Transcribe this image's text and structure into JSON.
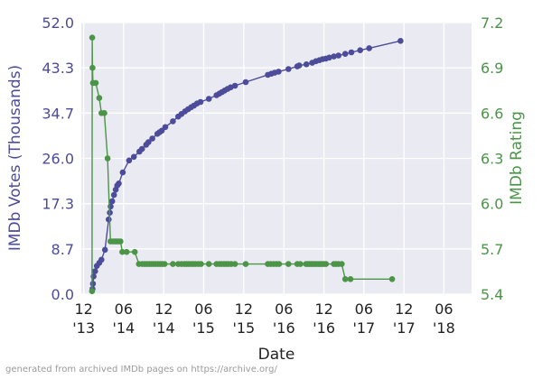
{
  "chart_data": {
    "type": "line",
    "xlabel": "Date",
    "ylabel_left": "IMDb Votes (Thousands)",
    "ylabel_right": "IMDb Rating",
    "x_ticks": [
      {
        "date": "2013-12-01",
        "line1": "12",
        "line2": "'13"
      },
      {
        "date": "2014-06-01",
        "line1": "06",
        "line2": "'14"
      },
      {
        "date": "2014-12-01",
        "line1": "12",
        "line2": "'14"
      },
      {
        "date": "2015-06-01",
        "line1": "06",
        "line2": "'15"
      },
      {
        "date": "2015-12-01",
        "line1": "12",
        "line2": "'15"
      },
      {
        "date": "2016-06-01",
        "line1": "06",
        "line2": "'16"
      },
      {
        "date": "2016-12-01",
        "line1": "12",
        "line2": "'16"
      },
      {
        "date": "2017-06-01",
        "line1": "06",
        "line2": "'17"
      },
      {
        "date": "2017-12-01",
        "line1": "12",
        "line2": "'17"
      },
      {
        "date": "2018-06-01",
        "line1": "06",
        "line2": "'18"
      }
    ],
    "xlim": [
      "2013-11-20",
      "2018-10-05"
    ],
    "y_left": {
      "min": 0,
      "max": 52,
      "ticks": [
        "0.0",
        "8.7",
        "17.3",
        "26.0",
        "34.7",
        "43.3",
        "52.0"
      ]
    },
    "y_right": {
      "min": 5.4,
      "max": 7.2,
      "ticks": [
        "5.4",
        "5.7",
        "6.0",
        "6.3",
        "6.6",
        "6.9",
        "7.2"
      ]
    },
    "grid": true,
    "series": [
      {
        "axis": "left",
        "color": "#4c4c9a",
        "points": [
          [
            "2014-01-10",
            1.0
          ],
          [
            "2014-01-12",
            2.0
          ],
          [
            "2014-01-15",
            3.4
          ],
          [
            "2014-01-22",
            4.4
          ],
          [
            "2014-01-30",
            5.4
          ],
          [
            "2014-02-10",
            6.0
          ],
          [
            "2014-02-20",
            6.6
          ],
          [
            "2014-03-08",
            8.5
          ],
          [
            "2014-03-25",
            14.3
          ],
          [
            "2014-03-30",
            15.6
          ],
          [
            "2014-04-03",
            16.8
          ],
          [
            "2014-04-10",
            17.8
          ],
          [
            "2014-04-18",
            19.0
          ],
          [
            "2014-04-26",
            20.0
          ],
          [
            "2014-05-03",
            20.8
          ],
          [
            "2014-05-10",
            21.2
          ],
          [
            "2014-05-28",
            23.3
          ],
          [
            "2014-06-26",
            25.6
          ],
          [
            "2014-07-18",
            26.3
          ],
          [
            "2014-08-12",
            27.3
          ],
          [
            "2014-08-24",
            27.8
          ],
          [
            "2014-09-12",
            28.6
          ],
          [
            "2014-09-22",
            29.1
          ],
          [
            "2014-10-10",
            29.8
          ],
          [
            "2014-11-02",
            30.7
          ],
          [
            "2014-11-12",
            31.0
          ],
          [
            "2014-11-22",
            31.3
          ],
          [
            "2014-12-08",
            32.0
          ],
          [
            "2015-01-12",
            33.1
          ],
          [
            "2015-02-05",
            34.0
          ],
          [
            "2015-02-20",
            34.5
          ],
          [
            "2015-03-08",
            35.0
          ],
          [
            "2015-03-22",
            35.4
          ],
          [
            "2015-04-05",
            35.8
          ],
          [
            "2015-04-18",
            36.1
          ],
          [
            "2015-05-02",
            36.5
          ],
          [
            "2015-05-18",
            36.8
          ],
          [
            "2015-06-25",
            37.4
          ],
          [
            "2015-07-30",
            38.1
          ],
          [
            "2015-08-12",
            38.4
          ],
          [
            "2015-08-24",
            38.7
          ],
          [
            "2015-09-05",
            39.0
          ],
          [
            "2015-09-18",
            39.3
          ],
          [
            "2015-10-02",
            39.6
          ],
          [
            "2015-10-22",
            39.9
          ],
          [
            "2015-12-10",
            40.6
          ],
          [
            "2016-03-20",
            42.0
          ],
          [
            "2016-04-05",
            42.2
          ],
          [
            "2016-04-20",
            42.4
          ],
          [
            "2016-05-08",
            42.6
          ],
          [
            "2016-06-22",
            43.1
          ],
          [
            "2016-08-01",
            43.6
          ],
          [
            "2016-08-10",
            43.8
          ],
          [
            "2016-09-12",
            44.0
          ],
          [
            "2016-10-08",
            44.3
          ],
          [
            "2016-10-25",
            44.6
          ],
          [
            "2016-11-10",
            44.8
          ],
          [
            "2016-11-25",
            45.0
          ],
          [
            "2016-12-10",
            45.1
          ],
          [
            "2016-12-25",
            45.3
          ],
          [
            "2017-01-15",
            45.5
          ],
          [
            "2017-02-05",
            45.7
          ],
          [
            "2017-03-08",
            46.0
          ],
          [
            "2017-04-05",
            46.3
          ],
          [
            "2017-05-15",
            46.7
          ],
          [
            "2017-06-25",
            47.1
          ],
          [
            "2017-11-15",
            48.5
          ]
        ]
      },
      {
        "axis": "right",
        "color": "#4b9448",
        "points": [
          [
            "2014-01-08",
            5.42
          ],
          [
            "2014-01-09",
            7.1
          ],
          [
            "2014-01-10",
            6.9
          ],
          [
            "2014-01-12",
            6.8
          ],
          [
            "2014-01-25",
            6.8
          ],
          [
            "2014-02-10",
            6.7
          ],
          [
            "2014-02-20",
            6.6
          ],
          [
            "2014-03-05",
            6.6
          ],
          [
            "2014-03-20",
            6.3
          ],
          [
            "2014-04-02",
            5.75
          ],
          [
            "2014-04-10",
            5.75
          ],
          [
            "2014-04-18",
            5.75
          ],
          [
            "2014-04-26",
            5.75
          ],
          [
            "2014-05-03",
            5.75
          ],
          [
            "2014-05-10",
            5.75
          ],
          [
            "2014-05-18",
            5.75
          ],
          [
            "2014-05-26",
            5.68
          ],
          [
            "2014-06-15",
            5.68
          ],
          [
            "2014-07-22",
            5.68
          ],
          [
            "2014-08-10",
            5.6
          ],
          [
            "2014-08-25",
            5.6
          ],
          [
            "2014-09-05",
            5.6
          ],
          [
            "2014-09-15",
            5.6
          ],
          [
            "2014-09-25",
            5.6
          ],
          [
            "2014-10-05",
            5.6
          ],
          [
            "2014-10-15",
            5.6
          ],
          [
            "2014-10-25",
            5.6
          ],
          [
            "2014-11-05",
            5.6
          ],
          [
            "2014-11-15",
            5.6
          ],
          [
            "2014-11-25",
            5.6
          ],
          [
            "2014-12-05",
            5.6
          ],
          [
            "2015-01-12",
            5.6
          ],
          [
            "2015-02-05",
            5.6
          ],
          [
            "2015-02-20",
            5.6
          ],
          [
            "2015-03-05",
            5.6
          ],
          [
            "2015-03-15",
            5.6
          ],
          [
            "2015-03-25",
            5.6
          ],
          [
            "2015-04-05",
            5.6
          ],
          [
            "2015-04-15",
            5.6
          ],
          [
            "2015-04-25",
            5.6
          ],
          [
            "2015-05-08",
            5.6
          ],
          [
            "2015-05-20",
            5.6
          ],
          [
            "2015-06-25",
            5.6
          ],
          [
            "2015-07-30",
            5.6
          ],
          [
            "2015-08-12",
            5.6
          ],
          [
            "2015-08-22",
            5.6
          ],
          [
            "2015-09-02",
            5.6
          ],
          [
            "2015-09-12",
            5.6
          ],
          [
            "2015-09-22",
            5.6
          ],
          [
            "2015-10-05",
            5.6
          ],
          [
            "2015-10-22",
            5.6
          ],
          [
            "2015-12-10",
            5.6
          ],
          [
            "2016-03-20",
            5.6
          ],
          [
            "2016-04-02",
            5.6
          ],
          [
            "2016-04-15",
            5.6
          ],
          [
            "2016-04-28",
            5.6
          ],
          [
            "2016-05-10",
            5.6
          ],
          [
            "2016-06-22",
            5.6
          ],
          [
            "2016-08-01",
            5.6
          ],
          [
            "2016-08-15",
            5.6
          ],
          [
            "2016-09-10",
            5.6
          ],
          [
            "2016-09-18",
            5.6
          ],
          [
            "2016-09-26",
            5.6
          ],
          [
            "2016-10-04",
            5.6
          ],
          [
            "2016-10-12",
            5.6
          ],
          [
            "2016-10-20",
            5.6
          ],
          [
            "2016-10-28",
            5.6
          ],
          [
            "2016-11-06",
            5.6
          ],
          [
            "2016-11-14",
            5.6
          ],
          [
            "2016-11-22",
            5.6
          ],
          [
            "2016-12-01",
            5.6
          ],
          [
            "2016-12-10",
            5.6
          ],
          [
            "2017-01-15",
            5.6
          ],
          [
            "2017-01-25",
            5.6
          ],
          [
            "2017-02-05",
            5.6
          ],
          [
            "2017-02-20",
            5.6
          ],
          [
            "2017-03-08",
            5.5
          ],
          [
            "2017-04-01",
            5.5
          ],
          [
            "2017-10-08",
            5.5
          ]
        ]
      }
    ],
    "colors": {
      "left_axis_text": "#4c4c9a",
      "right_axis_text": "#4b9448",
      "plot_bg": "#eaeaf2",
      "grid": "#ffffff"
    }
  },
  "footer": "generated from archived IMDb pages on https://archive.org/"
}
